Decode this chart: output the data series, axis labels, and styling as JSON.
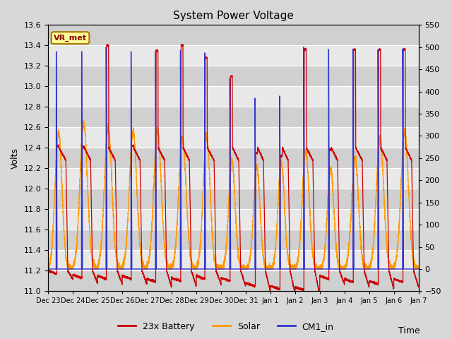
{
  "title": "System Power Voltage",
  "xlabel": "Time",
  "ylabel": "Volts",
  "ylim_left": [
    11.0,
    13.6
  ],
  "ylim_right": [
    -50,
    550
  ],
  "yticks_left": [
    11.0,
    11.2,
    11.4,
    11.6,
    11.8,
    12.0,
    12.2,
    12.4,
    12.6,
    12.8,
    13.0,
    13.2,
    13.4,
    13.6
  ],
  "yticks_right": [
    -50,
    0,
    50,
    100,
    150,
    200,
    250,
    300,
    350,
    400,
    450,
    500,
    550
  ],
  "xtick_labels": [
    "Dec 23",
    "Dec 24",
    "Dec 25",
    "Dec 26",
    "Dec 27",
    "Dec 28",
    "Dec 29",
    "Dec 30",
    "Dec 31",
    "Jan 1",
    "Jan 2",
    "Jan 3",
    "Jan 4",
    "Jan 5",
    "Jan 6",
    "Jan 7"
  ],
  "annotation_text": "VR_met",
  "color_battery": "#cc0000",
  "color_solar": "#ff9900",
  "color_cm1": "#3333cc",
  "legend_labels": [
    "23x Battery",
    "Solar",
    "CM1_in"
  ],
  "bg_color": "#d8d8d8",
  "plot_bg_color": "#e8e8e8",
  "stripe_color": "#d0d0d0",
  "grid_color": "#ffffff"
}
